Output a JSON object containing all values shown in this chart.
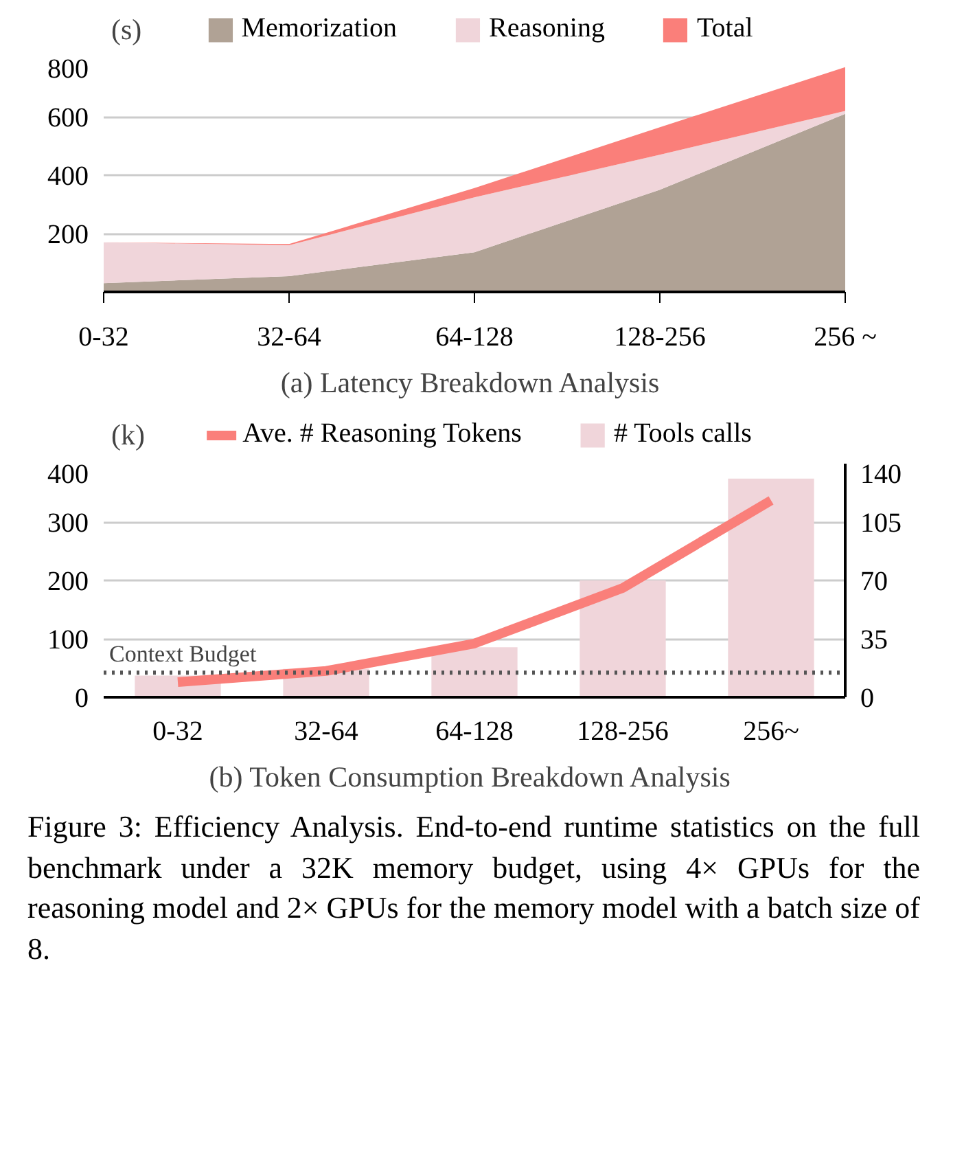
{
  "chart_data": [
    {
      "type": "area",
      "stacked": true,
      "title": "(a)  Latency Breakdown Analysis",
      "ylabel": "(s)",
      "categories": [
        "0-32",
        "32-64",
        "64-128",
        "128-256",
        "256 ~"
      ],
      "series": [
        {
          "name": "Memorization",
          "color": "#b0a295",
          "values": [
            30,
            54,
            136,
            350,
            610
          ]
        },
        {
          "name": "Reasoning",
          "color": "#f0d5da",
          "values": [
            140,
            106,
            188,
            120,
            10
          ]
        },
        {
          "name": "Total",
          "color": "#fa7f7a",
          "values": [
            0,
            4,
            32,
            94,
            150
          ]
        }
      ],
      "ylim": [
        0,
        800
      ],
      "yticks": [
        200,
        400,
        600,
        800
      ],
      "grid": "y",
      "legend": "top"
    },
    {
      "type": "bar",
      "title": "(b)  Token Consumption Breakdown Analysis",
      "ylabel": "(k)",
      "categories": [
        "0-32",
        "32-64",
        "64-128",
        "128-256",
        "256~"
      ],
      "series": [
        {
          "name": "Ave. # Reasoning Tokens",
          "type": "line",
          "color": "#fa7f7a",
          "values": [
            26,
            45,
            92,
            187,
            337
          ]
        },
        {
          "name": "# Tools calls",
          "type": "bar",
          "axis": "y2",
          "color": "#f0d5da",
          "values": [
            13,
            17,
            30,
            70,
            131
          ]
        }
      ],
      "ylim": [
        0,
        400
      ],
      "yticks": [
        0,
        100,
        200,
        300,
        400
      ],
      "y2lim": [
        0,
        140
      ],
      "y2ticks": [
        0,
        35,
        70,
        105,
        140
      ],
      "grid": "y",
      "legend": "top",
      "ref_lines": [
        {
          "axis": "y",
          "value": 42,
          "label": "Context Budget",
          "color": "#555555",
          "line_style": "dotted"
        }
      ],
      "annotations": [
        "Figure 3: Efficiency Analysis. End-to-end runtime statistics on the full benchmark under a 32K memory budget, using 4× GPUs for the reasoning model and 2× GPUs for the memory model with a batch size of 8."
      ]
    }
  ]
}
